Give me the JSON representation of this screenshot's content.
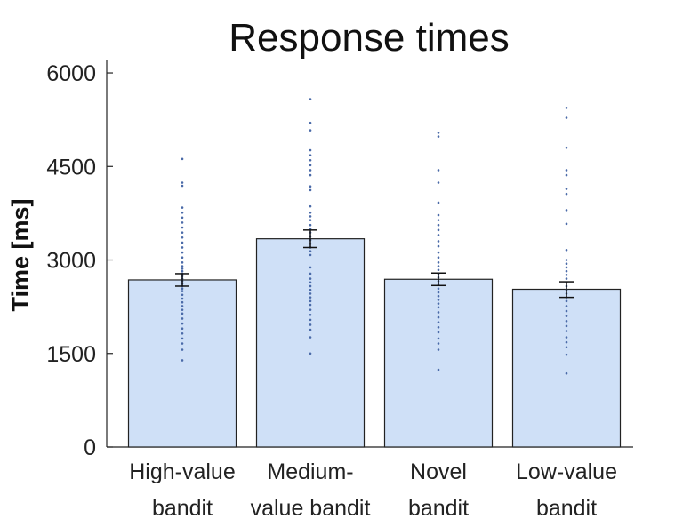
{
  "chart_data": {
    "type": "bar",
    "title": "Response times",
    "xlabel": "",
    "ylabel": "Time [ms]",
    "ylim": [
      0,
      6200
    ],
    "yticks": [
      0,
      1500,
      3000,
      4500,
      6000
    ],
    "bar_color": "#cfe0f7",
    "point_color": "#4a6aa8",
    "categories": [
      [
        "High-value",
        "bandit"
      ],
      [
        "Medium-",
        "value bandit"
      ],
      [
        "Novel",
        "bandit"
      ],
      [
        "Low-value",
        "bandit"
      ]
    ],
    "values": [
      2680,
      3340,
      2690,
      2530
    ],
    "error": [
      [
        2580,
        2780
      ],
      [
        3200,
        3480
      ],
      [
        2590,
        2790
      ],
      [
        2400,
        2650
      ]
    ],
    "points": [
      [
        4620,
        4240,
        4190,
        3840,
        3760,
        3680,
        3600,
        3520,
        3440,
        3360,
        3280,
        3200,
        3120,
        3040,
        2960,
        2900,
        2860,
        2820,
        2780,
        2740,
        2700,
        2660,
        2620,
        2580,
        2540,
        2500,
        2440,
        2380,
        2320,
        2260,
        2200,
        2140,
        2060,
        1980,
        1900,
        1820,
        1740,
        1660,
        1560,
        1390
      ],
      [
        5580,
        5200,
        5080,
        4760,
        4680,
        4600,
        4520,
        4440,
        4360,
        4180,
        4120,
        3860,
        3760,
        3700,
        3640,
        3560,
        3500,
        3440,
        3380,
        3320,
        3260,
        3200,
        3140,
        3080,
        2880,
        2780,
        2700,
        2640,
        2580,
        2520,
        2460,
        2400,
        2340,
        2280,
        2200,
        2120,
        2040,
        1960,
        1880,
        1760,
        1500
      ],
      [
        5040,
        4980,
        4440,
        4240,
        3920,
        3720,
        3640,
        3560,
        3480,
        3400,
        3300,
        3220,
        3120,
        3040,
        2960,
        2900,
        2840,
        2780,
        2720,
        2660,
        2600,
        2540,
        2480,
        2420,
        2360,
        2300,
        2240,
        2160,
        2080,
        2000,
        1920,
        1840,
        1740,
        1660,
        1560,
        1240
      ],
      [
        5440,
        5280,
        4800,
        4440,
        4360,
        4140,
        4060,
        3800,
        3580,
        3160,
        3000,
        2940,
        2880,
        2820,
        2760,
        2700,
        2640,
        2580,
        2520,
        2460,
        2400,
        2340,
        2260,
        2180,
        2100,
        2020,
        1940,
        1860,
        1760,
        1680,
        1600,
        1480,
        1180
      ]
    ]
  }
}
